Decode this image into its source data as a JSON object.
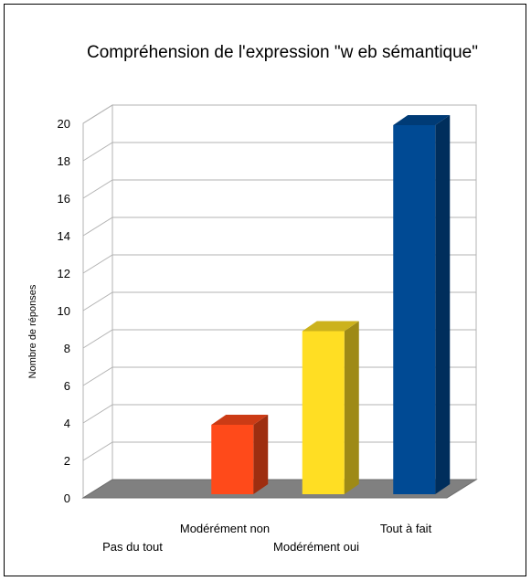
{
  "chart_data": {
    "type": "bar",
    "title": "Compréhension de l'expression \"w eb sémantique\"",
    "xlabel": "",
    "ylabel": "Nombre de réponses",
    "categories": [
      "Pas du tout",
      "Modérément non",
      "Modérément oui",
      "Tout à fait"
    ],
    "values": [
      0,
      4,
      9,
      20
    ],
    "colors": [
      "#ff4a1a",
      "#ff4a1a",
      "#ffde23",
      "#004a94"
    ],
    "ylim": [
      0,
      20
    ],
    "yticks": [
      0,
      2,
      4,
      6,
      8,
      10,
      12,
      14,
      16,
      18,
      20
    ],
    "grid": true,
    "style": "3d"
  }
}
